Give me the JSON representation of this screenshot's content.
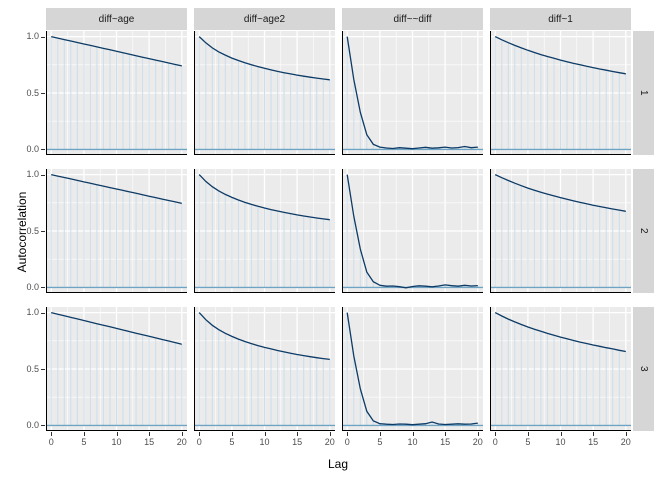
{
  "chart_data": {
    "type": "line",
    "title": "",
    "xlabel": "Lag",
    "ylabel": "Autocorrelation",
    "x_ticks": [
      0,
      5,
      10,
      15,
      20
    ],
    "x_minor": [
      2.5,
      7.5,
      12.5,
      17.5
    ],
    "y_ticks": [
      0.0,
      0.5,
      1.0
    ],
    "y_tick_labels": [
      "0.0",
      "0.5",
      "1.0"
    ],
    "y_minor": [
      0.25,
      0.75
    ],
    "xlim": [
      0,
      20
    ],
    "ylim": [
      0,
      1
    ],
    "grid": true,
    "facet_cols": [
      "diff~age",
      "diff~age2",
      "diff~~diff",
      "diff~1"
    ],
    "facet_rows": [
      "1",
      "2",
      "3"
    ],
    "lags": [
      0,
      1,
      2,
      3,
      4,
      5,
      6,
      7,
      8,
      9,
      10,
      11,
      12,
      13,
      14,
      15,
      16,
      17,
      18,
      19,
      20
    ],
    "panels": [
      {
        "row": "1",
        "col": "diff~age",
        "acf": [
          1.0,
          0.987,
          0.974,
          0.961,
          0.948,
          0.935,
          0.922,
          0.909,
          0.896,
          0.883,
          0.87,
          0.857,
          0.844,
          0.831,
          0.818,
          0.805,
          0.792,
          0.779,
          0.766,
          0.753,
          0.74
        ]
      },
      {
        "row": "1",
        "col": "diff~age2",
        "acf": [
          1.0,
          0.945,
          0.9,
          0.865,
          0.836,
          0.81,
          0.788,
          0.768,
          0.75,
          0.734,
          0.719,
          0.705,
          0.692,
          0.68,
          0.669,
          0.659,
          0.649,
          0.64,
          0.632,
          0.624,
          0.617
        ]
      },
      {
        "row": "1",
        "col": "diff~~diff",
        "acf": [
          1.0,
          0.62,
          0.33,
          0.13,
          0.045,
          0.02,
          0.012,
          0.008,
          0.015,
          0.01,
          0.006,
          0.012,
          0.018,
          0.01,
          0.014,
          0.02,
          0.012,
          0.016,
          0.025,
          0.015,
          0.02
        ]
      },
      {
        "row": "1",
        "col": "diff~1",
        "acf": [
          1.0,
          0.972,
          0.946,
          0.922,
          0.9,
          0.879,
          0.859,
          0.841,
          0.824,
          0.808,
          0.792,
          0.777,
          0.763,
          0.75,
          0.737,
          0.725,
          0.713,
          0.702,
          0.691,
          0.68,
          0.67
        ]
      },
      {
        "row": "2",
        "col": "diff~age",
        "acf": [
          1.0,
          0.987,
          0.975,
          0.962,
          0.949,
          0.936,
          0.924,
          0.911,
          0.898,
          0.885,
          0.873,
          0.86,
          0.847,
          0.834,
          0.822,
          0.809,
          0.796,
          0.783,
          0.771,
          0.758,
          0.745
        ]
      },
      {
        "row": "2",
        "col": "diff~age2",
        "acf": [
          1.0,
          0.94,
          0.893,
          0.856,
          0.825,
          0.798,
          0.775,
          0.754,
          0.736,
          0.719,
          0.704,
          0.69,
          0.677,
          0.665,
          0.654,
          0.643,
          0.633,
          0.624,
          0.615,
          0.607,
          0.6
        ]
      },
      {
        "row": "2",
        "col": "diff~~diff",
        "acf": [
          1.0,
          0.63,
          0.34,
          0.135,
          0.05,
          0.018,
          0.01,
          0.012,
          0.006,
          -0.004,
          0.008,
          0.014,
          0.01,
          0.005,
          0.012,
          0.022,
          0.015,
          0.01,
          0.018,
          0.012,
          0.016
        ]
      },
      {
        "row": "2",
        "col": "diff~1",
        "acf": [
          1.0,
          0.973,
          0.948,
          0.924,
          0.902,
          0.881,
          0.862,
          0.844,
          0.827,
          0.811,
          0.796,
          0.781,
          0.767,
          0.754,
          0.741,
          0.729,
          0.717,
          0.706,
          0.695,
          0.685,
          0.675
        ]
      },
      {
        "row": "3",
        "col": "diff~age",
        "acf": [
          1.0,
          0.986,
          0.972,
          0.958,
          0.944,
          0.93,
          0.916,
          0.902,
          0.888,
          0.874,
          0.86,
          0.846,
          0.832,
          0.818,
          0.804,
          0.79,
          0.776,
          0.762,
          0.748,
          0.734,
          0.72
        ]
      },
      {
        "row": "3",
        "col": "diff~age2",
        "acf": [
          1.0,
          0.937,
          0.888,
          0.849,
          0.817,
          0.789,
          0.765,
          0.744,
          0.725,
          0.708,
          0.692,
          0.678,
          0.664,
          0.652,
          0.64,
          0.629,
          0.619,
          0.609,
          0.6,
          0.592,
          0.585
        ]
      },
      {
        "row": "3",
        "col": "diff~~diff",
        "acf": [
          1.0,
          0.615,
          0.325,
          0.125,
          0.04,
          0.015,
          0.01,
          0.008,
          0.012,
          0.01,
          0.006,
          0.01,
          0.015,
          0.03,
          0.012,
          0.008,
          0.01,
          0.014,
          0.01,
          0.012,
          0.02
        ]
      },
      {
        "row": "3",
        "col": "diff~1",
        "acf": [
          1.0,
          0.97,
          0.943,
          0.918,
          0.895,
          0.873,
          0.853,
          0.834,
          0.816,
          0.799,
          0.783,
          0.768,
          0.753,
          0.739,
          0.726,
          0.713,
          0.701,
          0.689,
          0.678,
          0.666,
          0.655
        ]
      }
    ],
    "colors": {
      "panel_bg": "#ebebeb",
      "grid_major": "#ffffff",
      "grid_minor": "#f6f6f6",
      "strip_fill": "#d6d6d6",
      "strip_text": "#1a1a1a",
      "acf_line": "#0d3b66",
      "spike": "#ccdeeb",
      "zero_line": "#6fa3c4",
      "axis_line": "#000000",
      "tick_text": "#4d4d4d"
    },
    "legend": null
  }
}
